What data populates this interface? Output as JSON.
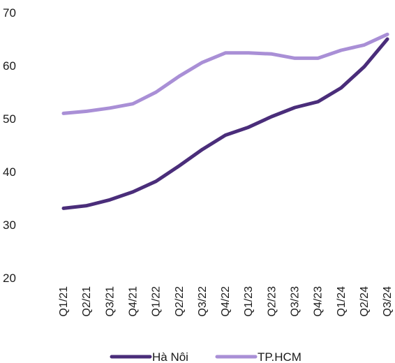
{
  "chart_data": {
    "type": "line",
    "title": "",
    "xlabel": "",
    "ylabel": "",
    "ylim": [
      20,
      70
    ],
    "yticks": [
      20,
      30,
      40,
      50,
      60,
      70
    ],
    "grid": false,
    "legend_position": "bottom",
    "categories": [
      "Q1/21",
      "Q2/21",
      "Q3/21",
      "Q4/21",
      "Q1/22",
      "Q2/22",
      "Q3/22",
      "Q4/22",
      "Q1/23",
      "Q2/23",
      "Q3/23",
      "Q4/23",
      "Q1/24",
      "Q2/24",
      "Q3/24"
    ],
    "series": [
      {
        "name": "Hà Nôi",
        "color": "#4a2d7a",
        "values": [
          33.1,
          33.6,
          34.7,
          36.2,
          38.2,
          41.1,
          44.2,
          46.9,
          48.4,
          50.4,
          52.1,
          53.2,
          55.8,
          59.8,
          65.0
        ]
      },
      {
        "name": "TP.HCM",
        "color": "#a98fd6",
        "values": [
          51.0,
          51.4,
          52.0,
          52.8,
          55.0,
          58.0,
          60.6,
          62.4,
          62.4,
          62.2,
          61.4,
          61.4,
          62.9,
          63.9,
          65.9
        ]
      }
    ]
  }
}
